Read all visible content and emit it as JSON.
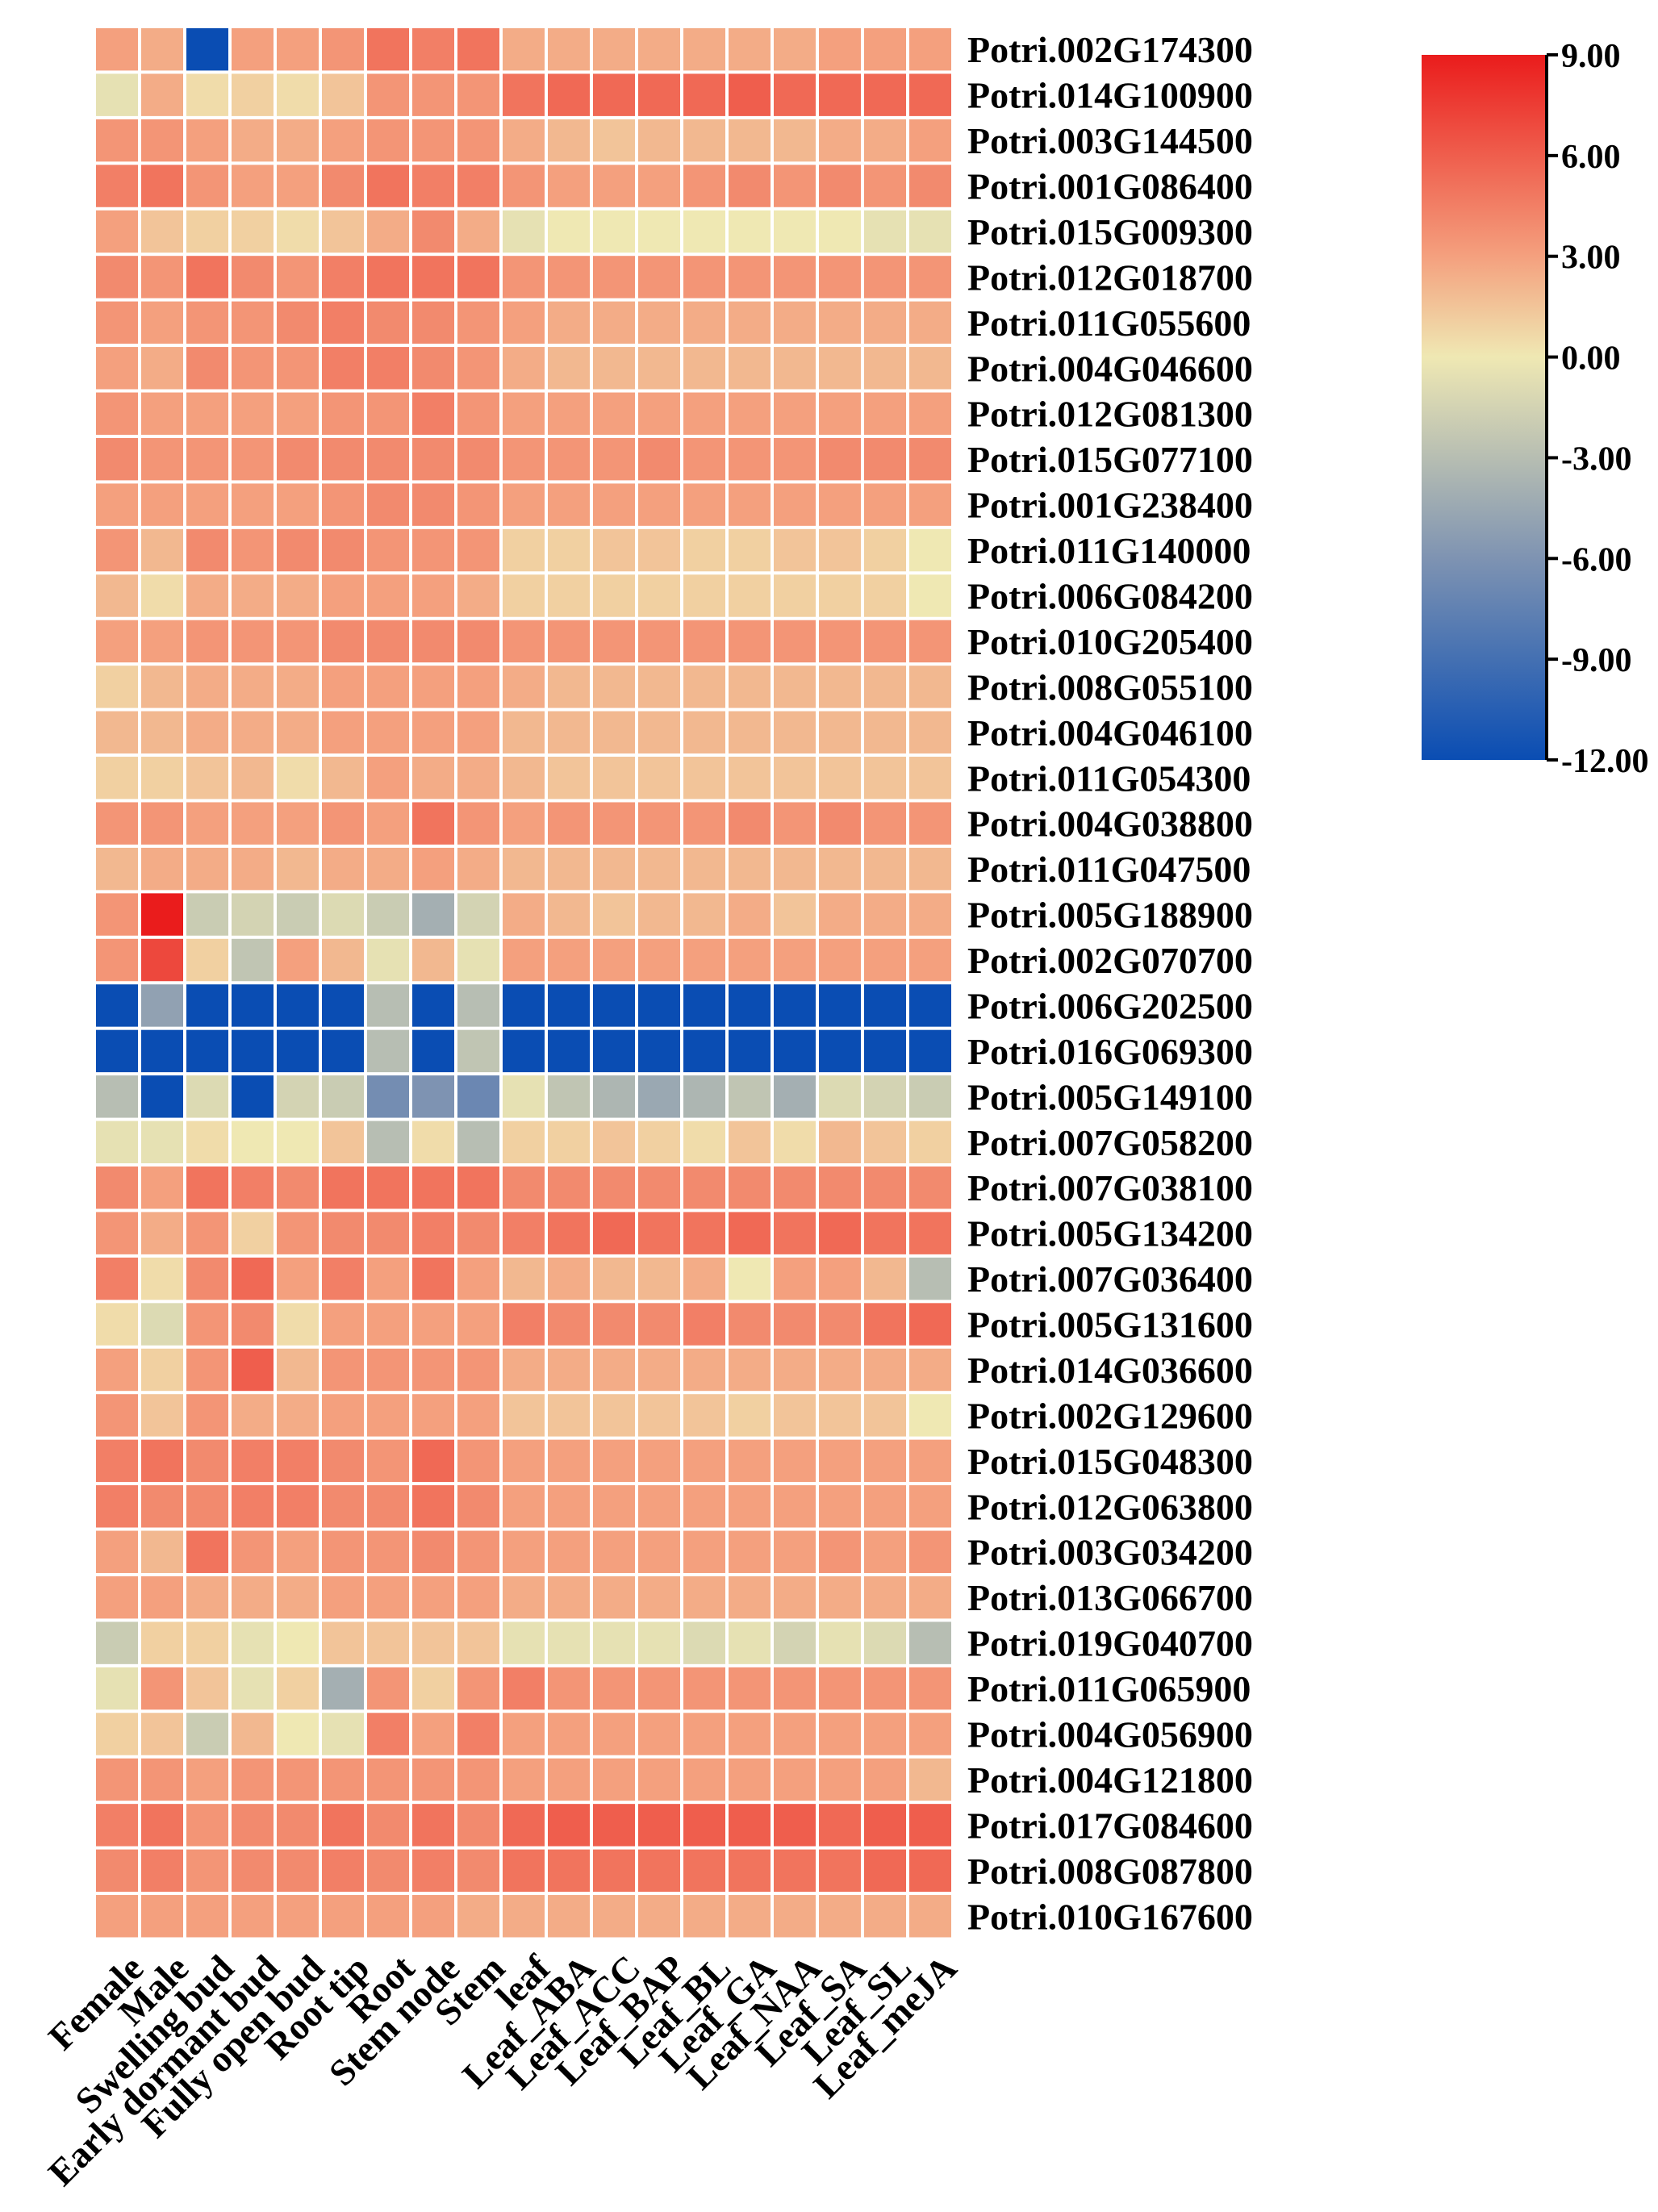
{
  "chart_data": {
    "type": "heatmap",
    "title": "",
    "xlabel": "",
    "ylabel": "",
    "columns": [
      "Female",
      "Male",
      "Swelling bud",
      "Early dormant bud",
      "Fully open bud",
      "Root tip",
      "Root",
      "Stem node",
      "Stem",
      "leaf",
      "Leaf_ABA",
      "Leaf_ACC",
      "Leaf_BAP",
      "Leaf_BL",
      "Leaf_GA",
      "Leaf_NAA",
      "Leaf_SA",
      "Leaf_SL",
      "Leaf_meJA"
    ],
    "rows": [
      "Potri.002G174300",
      "Potri.014G100900",
      "Potri.003G144500",
      "Potri.001G086400",
      "Potri.015G009300",
      "Potri.012G018700",
      "Potri.011G055600",
      "Potri.004G046600",
      "Potri.012G081300",
      "Potri.015G077100",
      "Potri.001G238400",
      "Potri.011G140000",
      "Potri.006G084200",
      "Potri.010G205400",
      "Potri.008G055100",
      "Potri.004G046100",
      "Potri.011G054300",
      "Potri.004G038800",
      "Potri.011G047500",
      "Potri.005G188900",
      "Potri.002G070700",
      "Potri.006G202500",
      "Potri.016G069300",
      "Potri.005G149100",
      "Potri.007G058200",
      "Potri.007G038100",
      "Potri.005G134200",
      "Potri.007G036400",
      "Potri.005G131600",
      "Potri.014G036600",
      "Potri.002G129600",
      "Potri.015G048300",
      "Potri.012G063800",
      "Potri.003G034200",
      "Potri.013G066700",
      "Potri.019G040700",
      "Potri.011G065900",
      "Potri.004G056900",
      "Potri.004G121800",
      "Potri.017G084600",
      "Potri.008G087800",
      "Potri.010G167600"
    ],
    "values": [
      [
        3,
        2.5,
        -12,
        3,
        3,
        3.5,
        5,
        4.5,
        5,
        2.5,
        2.5,
        2.5,
        2.5,
        2.5,
        2.5,
        2.5,
        3,
        3,
        3
      ],
      [
        -0.5,
        2.5,
        0.5,
        1,
        0.5,
        1.5,
        3.5,
        3.5,
        3.5,
        5,
        5.5,
        5.5,
        5.5,
        5.5,
        6,
        5.5,
        5.5,
        5.5,
        5.5
      ],
      [
        3.5,
        3.5,
        3,
        2.5,
        2.5,
        3,
        3.5,
        3.5,
        3.5,
        2.5,
        2,
        1.5,
        2,
        2,
        2,
        2,
        2.5,
        2.5,
        3
      ],
      [
        4.5,
        5,
        3.5,
        3,
        3,
        4,
        5,
        4.5,
        4.5,
        3.5,
        3,
        3,
        3,
        3.5,
        4,
        3.5,
        4,
        3.5,
        4
      ],
      [
        3,
        1.5,
        1,
        1,
        0.5,
        1.5,
        2.5,
        4,
        2.5,
        -0.5,
        0,
        0,
        0,
        0,
        0,
        0,
        0,
        -0.5,
        -0.5
      ],
      [
        4,
        3.5,
        5,
        4,
        3.5,
        4.5,
        5,
        5,
        5,
        3.5,
        3.5,
        3.5,
        3.5,
        3.5,
        3.5,
        3.5,
        3.5,
        3.5,
        3.5
      ],
      [
        3.5,
        3,
        3.5,
        3.5,
        4,
        4.5,
        4,
        4,
        3.5,
        3,
        2.5,
        2.5,
        2.5,
        2.5,
        2.5,
        2.5,
        2.5,
        2.5,
        2.5
      ],
      [
        3,
        2.5,
        4,
        3.5,
        3.5,
        4.5,
        4.5,
        4,
        3.5,
        2.5,
        2,
        2,
        2,
        2,
        2,
        2,
        2,
        2,
        2
      ],
      [
        3.5,
        3,
        3,
        3,
        3,
        3.5,
        3.5,
        4.5,
        3.5,
        3,
        3,
        3,
        3,
        3,
        3,
        3,
        3,
        3,
        3
      ],
      [
        4,
        3.5,
        3.5,
        3.5,
        4,
        4,
        4,
        4,
        4,
        3.5,
        3.5,
        3.5,
        4,
        3.5,
        3.5,
        3.5,
        4,
        4,
        4
      ],
      [
        3,
        3,
        3,
        3,
        3,
        3.5,
        4,
        4,
        3.5,
        3,
        3,
        3,
        3,
        3,
        3,
        3,
        3,
        3,
        3
      ],
      [
        3.5,
        2,
        4,
        3.5,
        4,
        4,
        3.5,
        3.5,
        3.5,
        1,
        1,
        1.5,
        1.5,
        1,
        1,
        1.5,
        1.5,
        1,
        0
      ],
      [
        2,
        0.5,
        2.5,
        2.5,
        2.5,
        3,
        3,
        3,
        2.5,
        1,
        1,
        1,
        1,
        1,
        1,
        1,
        1,
        1,
        0
      ],
      [
        3,
        3,
        3.5,
        3.5,
        3.5,
        4,
        4,
        4,
        4,
        3.5,
        3.5,
        3.5,
        3.5,
        3.5,
        3.5,
        3.5,
        3.5,
        3.5,
        3.5
      ],
      [
        1,
        2,
        2.5,
        2.5,
        2.5,
        3,
        3,
        3,
        3,
        2.5,
        2,
        2,
        2,
        2,
        2,
        2,
        2,
        2,
        2
      ],
      [
        2,
        2,
        2.5,
        2.5,
        2.5,
        3,
        3,
        3,
        3,
        2,
        2,
        2,
        2,
        2,
        2,
        2,
        2,
        2,
        2
      ],
      [
        1,
        1,
        1.5,
        2,
        0.5,
        2,
        3,
        2.5,
        2.5,
        2,
        1.5,
        1.5,
        1.5,
        1.5,
        1.5,
        1.5,
        1.5,
        1.5,
        1.5
      ],
      [
        3.5,
        3.5,
        3,
        3,
        3,
        3.5,
        3,
        5,
        3.5,
        3,
        3.5,
        3.5,
        3.5,
        3.5,
        4,
        3.5,
        4,
        3.5,
        3.5
      ],
      [
        2,
        2.5,
        2.5,
        2.5,
        2,
        2.5,
        2.5,
        3,
        2.5,
        2,
        2,
        2,
        2,
        2,
        2,
        2,
        2,
        2,
        2
      ],
      [
        3.5,
        9,
        -2,
        -1.5,
        -2,
        -1,
        -2,
        -4,
        -1.5,
        2.5,
        2,
        1.5,
        2,
        2,
        2.5,
        1.5,
        2.5,
        2.5,
        2.5
      ],
      [
        3.5,
        7,
        1,
        -2.5,
        3,
        2,
        -0.5,
        2,
        -0.5,
        3,
        3,
        3,
        3,
        3,
        3,
        3,
        3,
        3,
        3
      ],
      [
        -12,
        -5,
        -12,
        -12,
        -12,
        -12,
        -3,
        -12,
        -3,
        -12,
        -12,
        -12,
        -12,
        -12,
        -12,
        -12,
        -12,
        -12,
        -12
      ],
      [
        -12,
        -12,
        -12,
        -12,
        -12,
        -12,
        -3,
        -12,
        -2.5,
        -12,
        -12,
        -12,
        -12,
        -12,
        -12,
        -12,
        -12,
        -12,
        -12
      ],
      [
        -3,
        -12,
        -1,
        -12,
        -1.5,
        -2,
        -6.5,
        -6,
        -7,
        -0.5,
        -2.5,
        -3.5,
        -4.5,
        -3.5,
        -2.5,
        -4,
        -1,
        -1.5,
        -2
      ],
      [
        -0.5,
        -0.5,
        0.5,
        0,
        0,
        1.5,
        -3,
        0.5,
        -3,
        1,
        1,
        1.5,
        1,
        0.5,
        1.5,
        0.5,
        2,
        1.5,
        1
      ],
      [
        4,
        3,
        5,
        4.5,
        4,
        5,
        5,
        5,
        5,
        4,
        4,
        4,
        4,
        4,
        4,
        4,
        4,
        4,
        4
      ],
      [
        3.5,
        2.5,
        3.5,
        1,
        3.5,
        4,
        4,
        4.5,
        4,
        4.5,
        5,
        5.5,
        5,
        5,
        5.5,
        5,
        5.5,
        5,
        5
      ],
      [
        4.5,
        0.5,
        4,
        5.5,
        3,
        4.5,
        3,
        5,
        3,
        2,
        2.5,
        2,
        2,
        2.5,
        0,
        3,
        3,
        2,
        -3
      ],
      [
        0.5,
        -1,
        3.5,
        4,
        0.5,
        3,
        3,
        3,
        3,
        4.5,
        4,
        4,
        4,
        4.5,
        4,
        4,
        4,
        5,
        5.5
      ],
      [
        3,
        1,
        3.5,
        6,
        2,
        3.5,
        3.5,
        3.5,
        3.5,
        2.5,
        2.5,
        2.5,
        2.5,
        2.5,
        2.5,
        2.5,
        2.5,
        2.5,
        2.5
      ],
      [
        3.5,
        1.5,
        3.5,
        2.5,
        2.5,
        3,
        3,
        3,
        3,
        1.5,
        1.5,
        1.5,
        1.5,
        1.5,
        1,
        1.5,
        1.5,
        1.5,
        0
      ],
      [
        4.5,
        5,
        4,
        4.5,
        4.5,
        4,
        3.5,
        5.5,
        3.5,
        3,
        3,
        3,
        3,
        3,
        3,
        3,
        3,
        3,
        3
      ],
      [
        4.5,
        4,
        4,
        4.5,
        4.5,
        4,
        4,
        5,
        4,
        3,
        3,
        3,
        3,
        3,
        3,
        3,
        3,
        3,
        3
      ],
      [
        3,
        2,
        5,
        3.5,
        3,
        3.5,
        3.5,
        4,
        3.5,
        3,
        3,
        3,
        3,
        3,
        3,
        3,
        3.5,
        3,
        3.5
      ],
      [
        3,
        3,
        2.5,
        2.5,
        2.5,
        3,
        3,
        3,
        3,
        2.5,
        2.5,
        2.5,
        2.5,
        2.5,
        2.5,
        2.5,
        2.5,
        2.5,
        2.5
      ],
      [
        -2,
        1,
        1,
        -0.5,
        0,
        1.5,
        1.5,
        1.5,
        1.5,
        -0.5,
        -0.5,
        -0.5,
        -0.5,
        -1,
        -0.5,
        -1.5,
        -0.5,
        -1,
        -3
      ],
      [
        -0.5,
        3.5,
        1.5,
        -0.5,
        1,
        -4,
        3.5,
        1,
        3.5,
        4.5,
        3.5,
        3.5,
        3.5,
        3.5,
        3.5,
        3.5,
        3.5,
        3.5,
        3.5
      ],
      [
        1,
        1.5,
        -2,
        2,
        0,
        -0.5,
        4.5,
        3,
        4.5,
        3,
        3,
        3,
        3,
        3,
        3,
        3,
        3,
        3,
        3
      ],
      [
        3.5,
        3.5,
        3,
        3.5,
        3.5,
        3.5,
        3.5,
        3.5,
        3.5,
        3,
        3,
        3,
        3,
        3,
        3,
        3,
        3,
        3,
        2
      ],
      [
        4.5,
        5,
        3.5,
        4,
        4,
        5,
        4,
        5,
        4,
        5.5,
        6,
        6,
        6,
        6,
        6,
        6,
        5.5,
        6,
        6
      ],
      [
        4,
        4.5,
        3.5,
        4,
        4,
        4.5,
        4,
        4.5,
        4,
        5,
        5,
        5,
        5,
        5,
        5,
        5,
        5,
        5.5,
        5.5
      ],
      [
        3,
        3,
        3,
        3,
        3,
        3,
        3,
        3,
        2.5,
        2.5,
        2.5,
        2.5,
        2.5,
        2.5,
        2.5,
        2.5,
        2.5,
        2.5,
        2.5
      ]
    ],
    "colorbar": {
      "min": -12,
      "max": 9,
      "ticks": [
        9,
        6,
        3,
        0,
        -3,
        -6,
        -9,
        -12
      ],
      "tick_labels": [
        "9.00",
        "6.00",
        "3.00",
        "0.00",
        "-3.00",
        "-6.00",
        "-9.00",
        "-12.00"
      ],
      "colors": [
        {
          "value": -12,
          "hex": "#0a4db3"
        },
        {
          "value": -6,
          "hex": "#7e93b2"
        },
        {
          "value": 0,
          "hex": "#efe8b3"
        },
        {
          "value": 3,
          "hex": "#f4a07e"
        },
        {
          "value": 9,
          "hex": "#ea1c1c"
        }
      ]
    },
    "grid": true,
    "grid_color": "#ffffff",
    "legend_position": "top-right"
  }
}
